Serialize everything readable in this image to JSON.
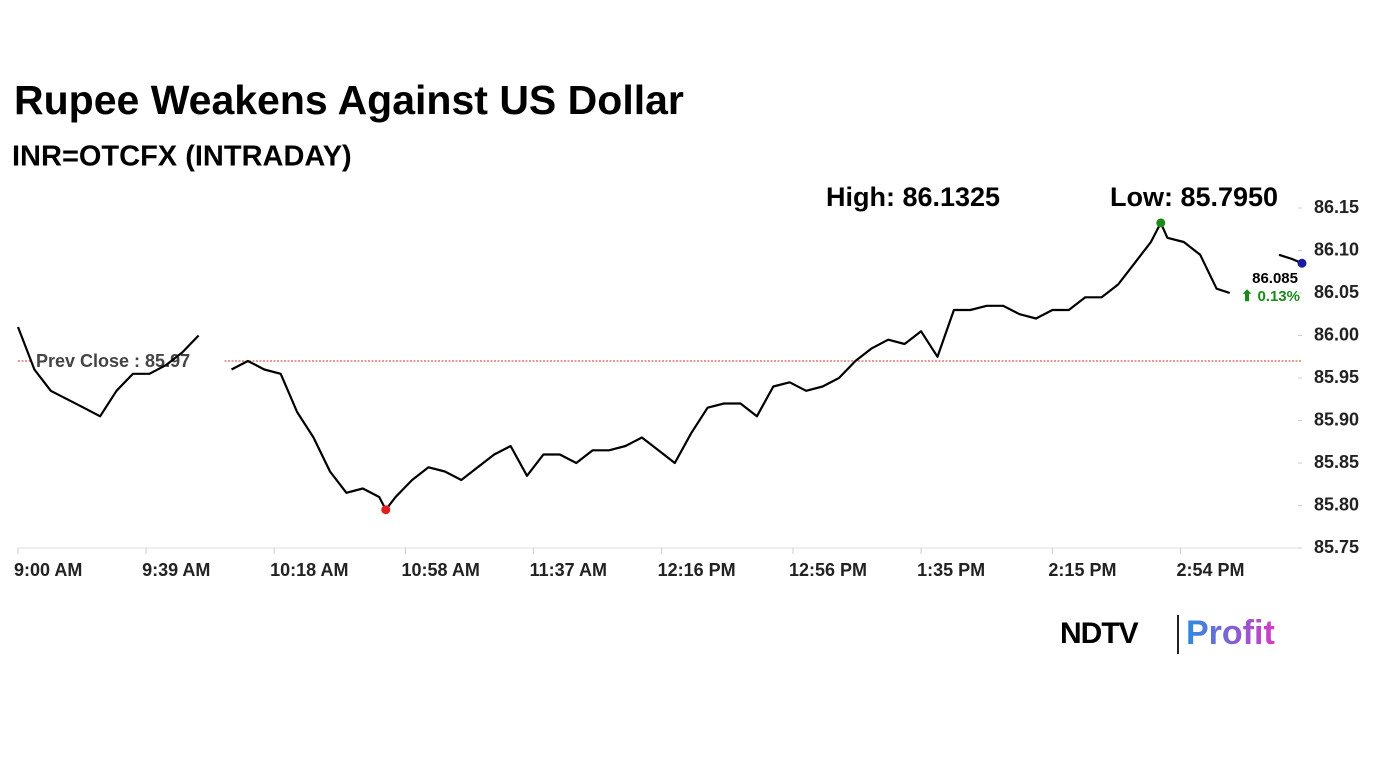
{
  "chart_data": {
    "type": "line",
    "title": "Rupee Weakens Against US Dollar",
    "subtitle": "INR=OTCFX (INTRADAY)",
    "high_text": "High: 86.1325",
    "low_text": "Low: 85.7950",
    "prev_close": 85.97,
    "prev_close_text": "Prev Close : 85.97",
    "change_text": "⬆ 0.13%",
    "change_color": "#1a8a1a",
    "prev_close_color": "#c0392b",
    "high_color": "#1a8a1a",
    "low_color": "#e02020",
    "last_color": "#1a1aa0",
    "series": [
      {
        "name": "INR=OTCFX",
        "color": "#000000",
        "x": [
          "9:00 AM",
          "9:05 AM",
          "9:10 AM",
          "9:15 AM",
          "9:20 AM",
          "9:25 AM",
          "9:30 AM",
          "9:35 AM",
          "9:40 AM",
          "9:45 AM",
          "9:50 AM",
          "9:55 AM",
          "10:00 AM",
          "10:05 AM",
          "10:10 AM",
          "10:15 AM",
          "10:20 AM",
          "10:25 AM",
          "10:30 AM",
          "10:35 AM",
          "10:40 AM",
          "10:45 AM",
          "10:50 AM",
          "10:52 AM",
          "10:55 AM",
          "11:00 AM",
          "11:05 AM",
          "11:10 AM",
          "11:15 AM",
          "11:20 AM",
          "11:25 AM",
          "11:30 AM",
          "11:35 AM",
          "11:40 AM",
          "11:45 AM",
          "11:50 AM",
          "11:55 AM",
          "12:00 PM",
          "12:05 PM",
          "12:10 PM",
          "12:15 PM",
          "12:20 PM",
          "12:25 PM",
          "12:30 PM",
          "12:35 PM",
          "12:40 PM",
          "12:45 PM",
          "12:50 PM",
          "12:55 PM",
          "1:00 PM",
          "1:05 PM",
          "1:10 PM",
          "1:15 PM",
          "1:20 PM",
          "1:25 PM",
          "1:30 PM",
          "1:35 PM",
          "1:40 PM",
          "1:45 PM",
          "1:50 PM",
          "1:55 PM",
          "2:00 PM",
          "2:05 PM",
          "2:10 PM",
          "2:15 PM",
          "2:20 PM",
          "2:25 PM",
          "2:30 PM",
          "2:35 PM",
          "2:40 PM",
          "2:45 PM",
          "2:48 PM",
          "2:50 PM",
          "2:55 PM",
          "3:00 PM",
          "3:05 PM",
          "3:09 PM",
          "3:15 PM",
          "3:24 PM",
          "3:28 PM",
          "3:31 PM"
        ],
        "values": [
          86.01,
          85.96,
          85.935,
          85.925,
          85.915,
          85.905,
          85.935,
          85.955,
          85.955,
          85.965,
          85.98,
          86.0,
          null,
          85.96,
          85.97,
          85.96,
          85.955,
          85.91,
          85.88,
          85.84,
          85.815,
          85.82,
          85.81,
          85.795,
          85.81,
          85.83,
          85.845,
          85.84,
          85.83,
          85.845,
          85.86,
          85.87,
          85.835,
          85.86,
          85.86,
          85.85,
          85.865,
          85.865,
          85.87,
          85.88,
          85.865,
          85.85,
          85.885,
          85.915,
          85.92,
          85.92,
          85.905,
          85.94,
          85.945,
          85.935,
          85.94,
          85.95,
          85.97,
          85.985,
          85.995,
          85.99,
          86.005,
          85.975,
          86.03,
          86.03,
          86.035,
          86.035,
          86.025,
          86.02,
          86.03,
          86.03,
          86.045,
          86.045,
          86.06,
          86.085,
          86.11,
          86.1325,
          86.115,
          86.11,
          86.095,
          86.055,
          86.05,
          null,
          86.095,
          86.09,
          86.085
        ]
      }
    ],
    "xlim": [
      "9:00 AM",
      "3:31 PM"
    ],
    "xticks": [
      "9:00 AM",
      "9:39 AM",
      "10:18 AM",
      "10:58 AM",
      "11:37 AM",
      "12:16 PM",
      "12:56 PM",
      "1:35 PM",
      "2:15 PM",
      "2:54 PM"
    ],
    "ylim": [
      85.75,
      86.15
    ],
    "yticks": [
      85.75,
      {
        "value": 85.8,
        "label": "85.80"
      },
      85.85,
      {
        "value": 85.9,
        "label": "85.90"
      },
      85.95,
      {
        "value": 86.0,
        "label": "86.00"
      },
      86.05,
      {
        "value": 86.1,
        "label": "86.10"
      },
      86.15
    ]
  },
  "branding": {
    "left": "NDTV",
    "right": "Profit"
  }
}
